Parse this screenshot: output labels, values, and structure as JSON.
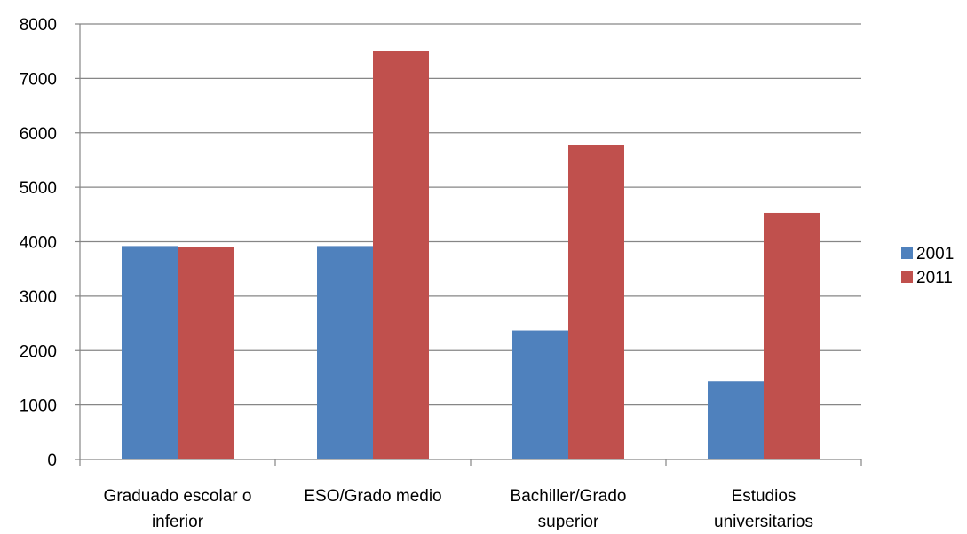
{
  "chart_data": {
    "type": "bar",
    "title": "",
    "xlabel": "",
    "ylabel": "",
    "categories": [
      [
        "Graduado escolar o",
        "inferior"
      ],
      [
        "ESO/Grado medio"
      ],
      [
        "Bachiller/Grado",
        "superior"
      ],
      [
        "Estudios",
        "universitarios"
      ]
    ],
    "series": [
      {
        "name": "2001",
        "color": "#4f81bd",
        "values": [
          3920,
          3920,
          2370,
          1430
        ]
      },
      {
        "name": "2011",
        "color": "#c0504d",
        "values": [
          3900,
          7500,
          5770,
          4530
        ]
      }
    ],
    "ylim": [
      0,
      8000
    ],
    "yticks": [
      0,
      1000,
      2000,
      3000,
      4000,
      5000,
      6000,
      7000,
      8000
    ],
    "grid": true,
    "legend": "right"
  }
}
